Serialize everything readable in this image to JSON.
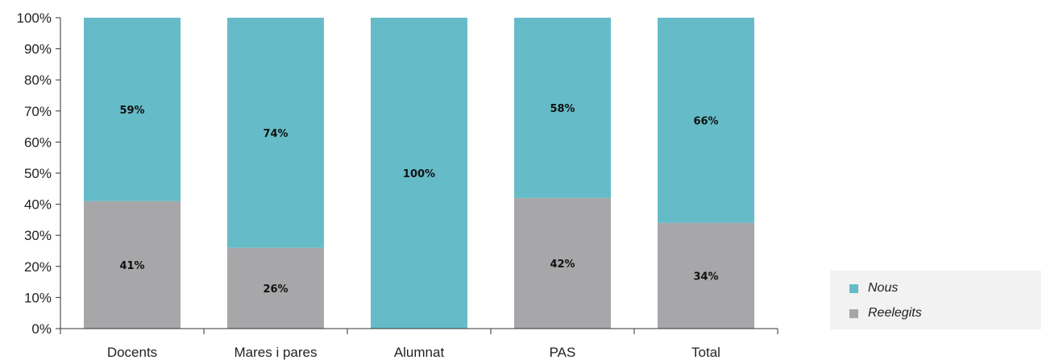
{
  "chart_data": {
    "type": "bar",
    "stacked": true,
    "categories": [
      "Docents",
      "Mares i pares",
      "Alumnat",
      "PAS",
      "Total"
    ],
    "series": [
      {
        "name": "Reelegits",
        "values": [
          41,
          26,
          0,
          42,
          34
        ],
        "labels": [
          "41%",
          "26%",
          "",
          "42%",
          "34%"
        ],
        "color": "#a7a7a9"
      },
      {
        "name": "Nous",
        "values": [
          59,
          74,
          100,
          58,
          66
        ],
        "labels": [
          "59%",
          "74%",
          "100%",
          "58%",
          "66%"
        ],
        "color": "#65bcc8"
      }
    ],
    "y_ticks": [
      "0%",
      "10%",
      "20%",
      "30%",
      "40%",
      "50%",
      "60%",
      "70%",
      "80%",
      "90%",
      "100%"
    ],
    "ylim": [
      0,
      100
    ],
    "grid": false,
    "legend": {
      "position": "bottom-right",
      "items": [
        {
          "label": "Nous",
          "color": "#65bcc8"
        },
        {
          "label": "Reelegits",
          "color": "#a7a7a9"
        }
      ]
    }
  }
}
